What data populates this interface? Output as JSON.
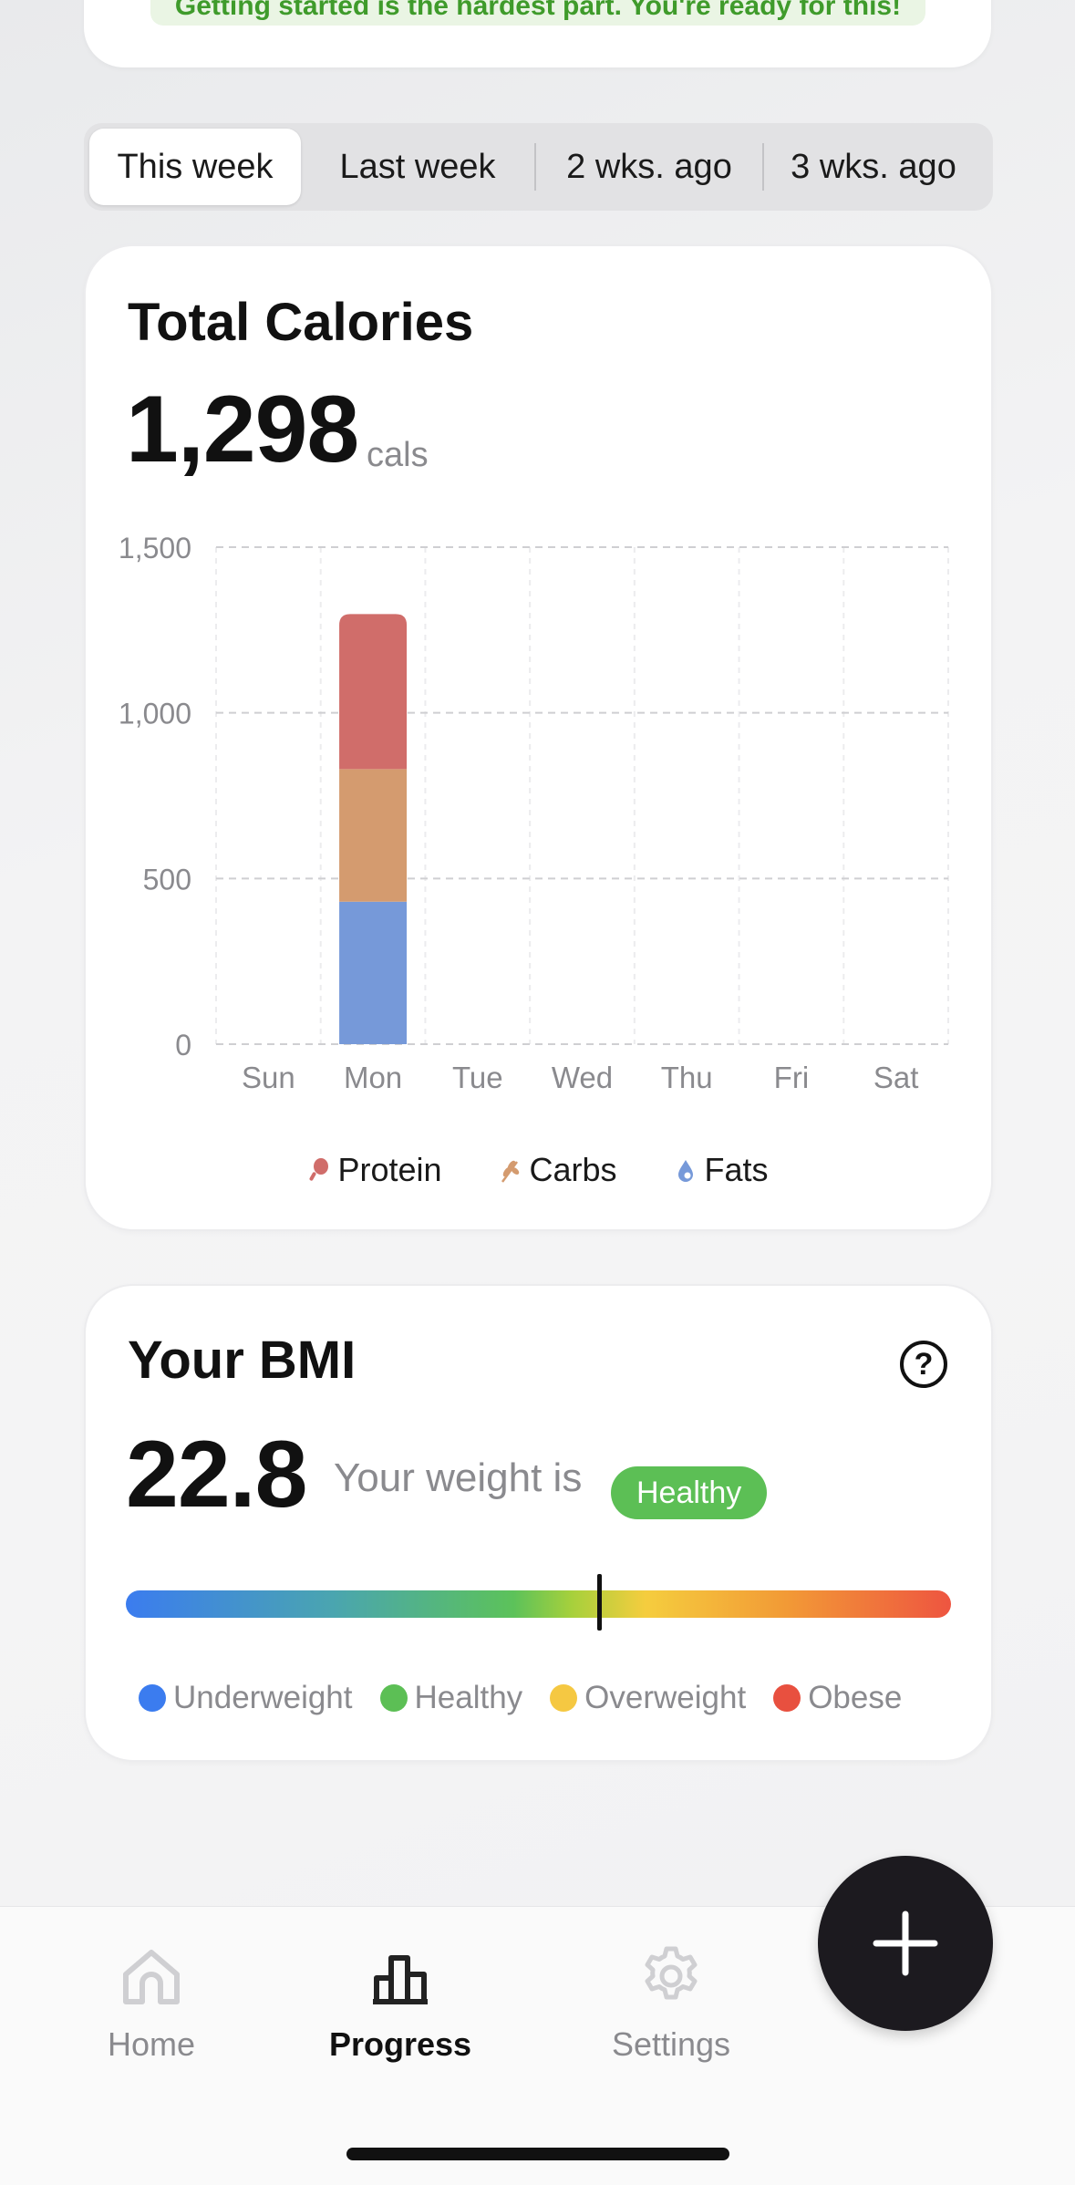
{
  "top_banner": {
    "text": "Getting started is the hardest part. You're ready for this!"
  },
  "week_tabs": [
    {
      "label": "This week",
      "active": true
    },
    {
      "label": "Last week",
      "active": false
    },
    {
      "label": "2 wks. ago",
      "active": false
    },
    {
      "label": "3 wks. ago",
      "active": false
    }
  ],
  "calories": {
    "title": "Total Calories",
    "total": "1,298",
    "unit": "cals"
  },
  "chart_data": {
    "type": "bar",
    "stacked": true,
    "categories": [
      "Sun",
      "Mon",
      "Tue",
      "Wed",
      "Thu",
      "Fri",
      "Sat"
    ],
    "series": [
      {
        "name": "Fats",
        "color": "#7699d9",
        "values": [
          0,
          430,
          0,
          0,
          0,
          0,
          0
        ]
      },
      {
        "name": "Carbs",
        "color": "#d49b6f",
        "values": [
          0,
          400,
          0,
          0,
          0,
          0,
          0
        ]
      },
      {
        "name": "Protein",
        "color": "#d06d6a",
        "values": [
          0,
          468,
          0,
          0,
          0,
          0,
          0
        ]
      }
    ],
    "ylim": [
      0,
      1500
    ],
    "yticks": [
      "0",
      "500",
      "1,000",
      "1,500"
    ],
    "ytick_values": [
      0,
      500,
      1000,
      1500
    ],
    "grid": true,
    "legend_placement": "bottom-center"
  },
  "legend": [
    {
      "label": "Protein",
      "icon": "drumstick-icon",
      "color": "#d06d6a"
    },
    {
      "label": "Carbs",
      "icon": "wheat-icon",
      "color": "#d49b6f"
    },
    {
      "label": "Fats",
      "icon": "droplet-icon",
      "color": "#7699d9"
    }
  ],
  "bmi": {
    "title": "Your BMI",
    "value": "22.8",
    "status_text": "Your weight is",
    "badge": "Healthy",
    "help_icon": "?",
    "marker_fraction": 0.574,
    "categories": [
      {
        "label": "Underweight",
        "color": "#3b7cef"
      },
      {
        "label": "Healthy",
        "color": "#5cbf55"
      },
      {
        "label": "Overweight",
        "color": "#f5c842"
      },
      {
        "label": "Obese",
        "color": "#e8503f"
      }
    ]
  },
  "nav": [
    {
      "label": "Home",
      "icon": "home-icon",
      "active": false
    },
    {
      "label": "Progress",
      "icon": "bar-chart-icon",
      "active": true
    },
    {
      "label": "Settings",
      "icon": "gear-icon",
      "active": false
    }
  ],
  "fab": {
    "icon": "plus-icon"
  }
}
